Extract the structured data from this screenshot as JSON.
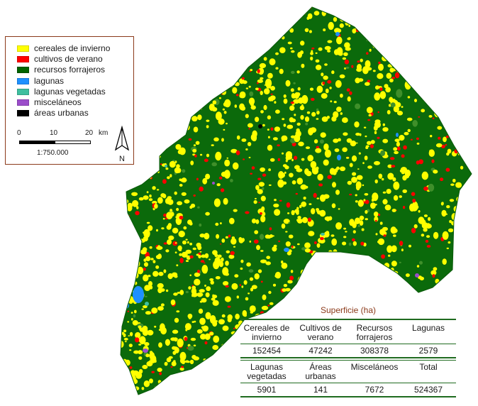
{
  "legend": {
    "items": [
      {
        "label": "cereales de invierno",
        "color": "#ffff00"
      },
      {
        "label": "cultivos de verano",
        "color": "#ff0000"
      },
      {
        "label": "recursos forrajeros",
        "color": "#006400"
      },
      {
        "label": "lagunas",
        "color": "#1e90ff"
      },
      {
        "label": "lagunas vegetadas",
        "color": "#3fbf9f"
      },
      {
        "label": "misceláneos",
        "color": "#9b4dca"
      },
      {
        "label": "áreas urbanas",
        "color": "#000000"
      }
    ],
    "scale": {
      "t0": "0",
      "t1": "10",
      "t2": "20",
      "unit": "km",
      "ratio": "1:750.000"
    },
    "north_label": "N"
  },
  "surface": {
    "title": "Superficie (ha)",
    "row1_headers": [
      "Cereales de invierno",
      "Cultivos de verano",
      "Recursos forrajeros",
      "Lagunas"
    ],
    "row1_values": [
      "152454",
      "47242",
      "308378",
      "2579"
    ],
    "row2_headers": [
      "Lagunas vegetadas",
      "Áreas urbanas",
      "Misceláneos",
      "Total"
    ],
    "row2_values": [
      "5901",
      "141",
      "7672",
      "524367"
    ]
  }
}
